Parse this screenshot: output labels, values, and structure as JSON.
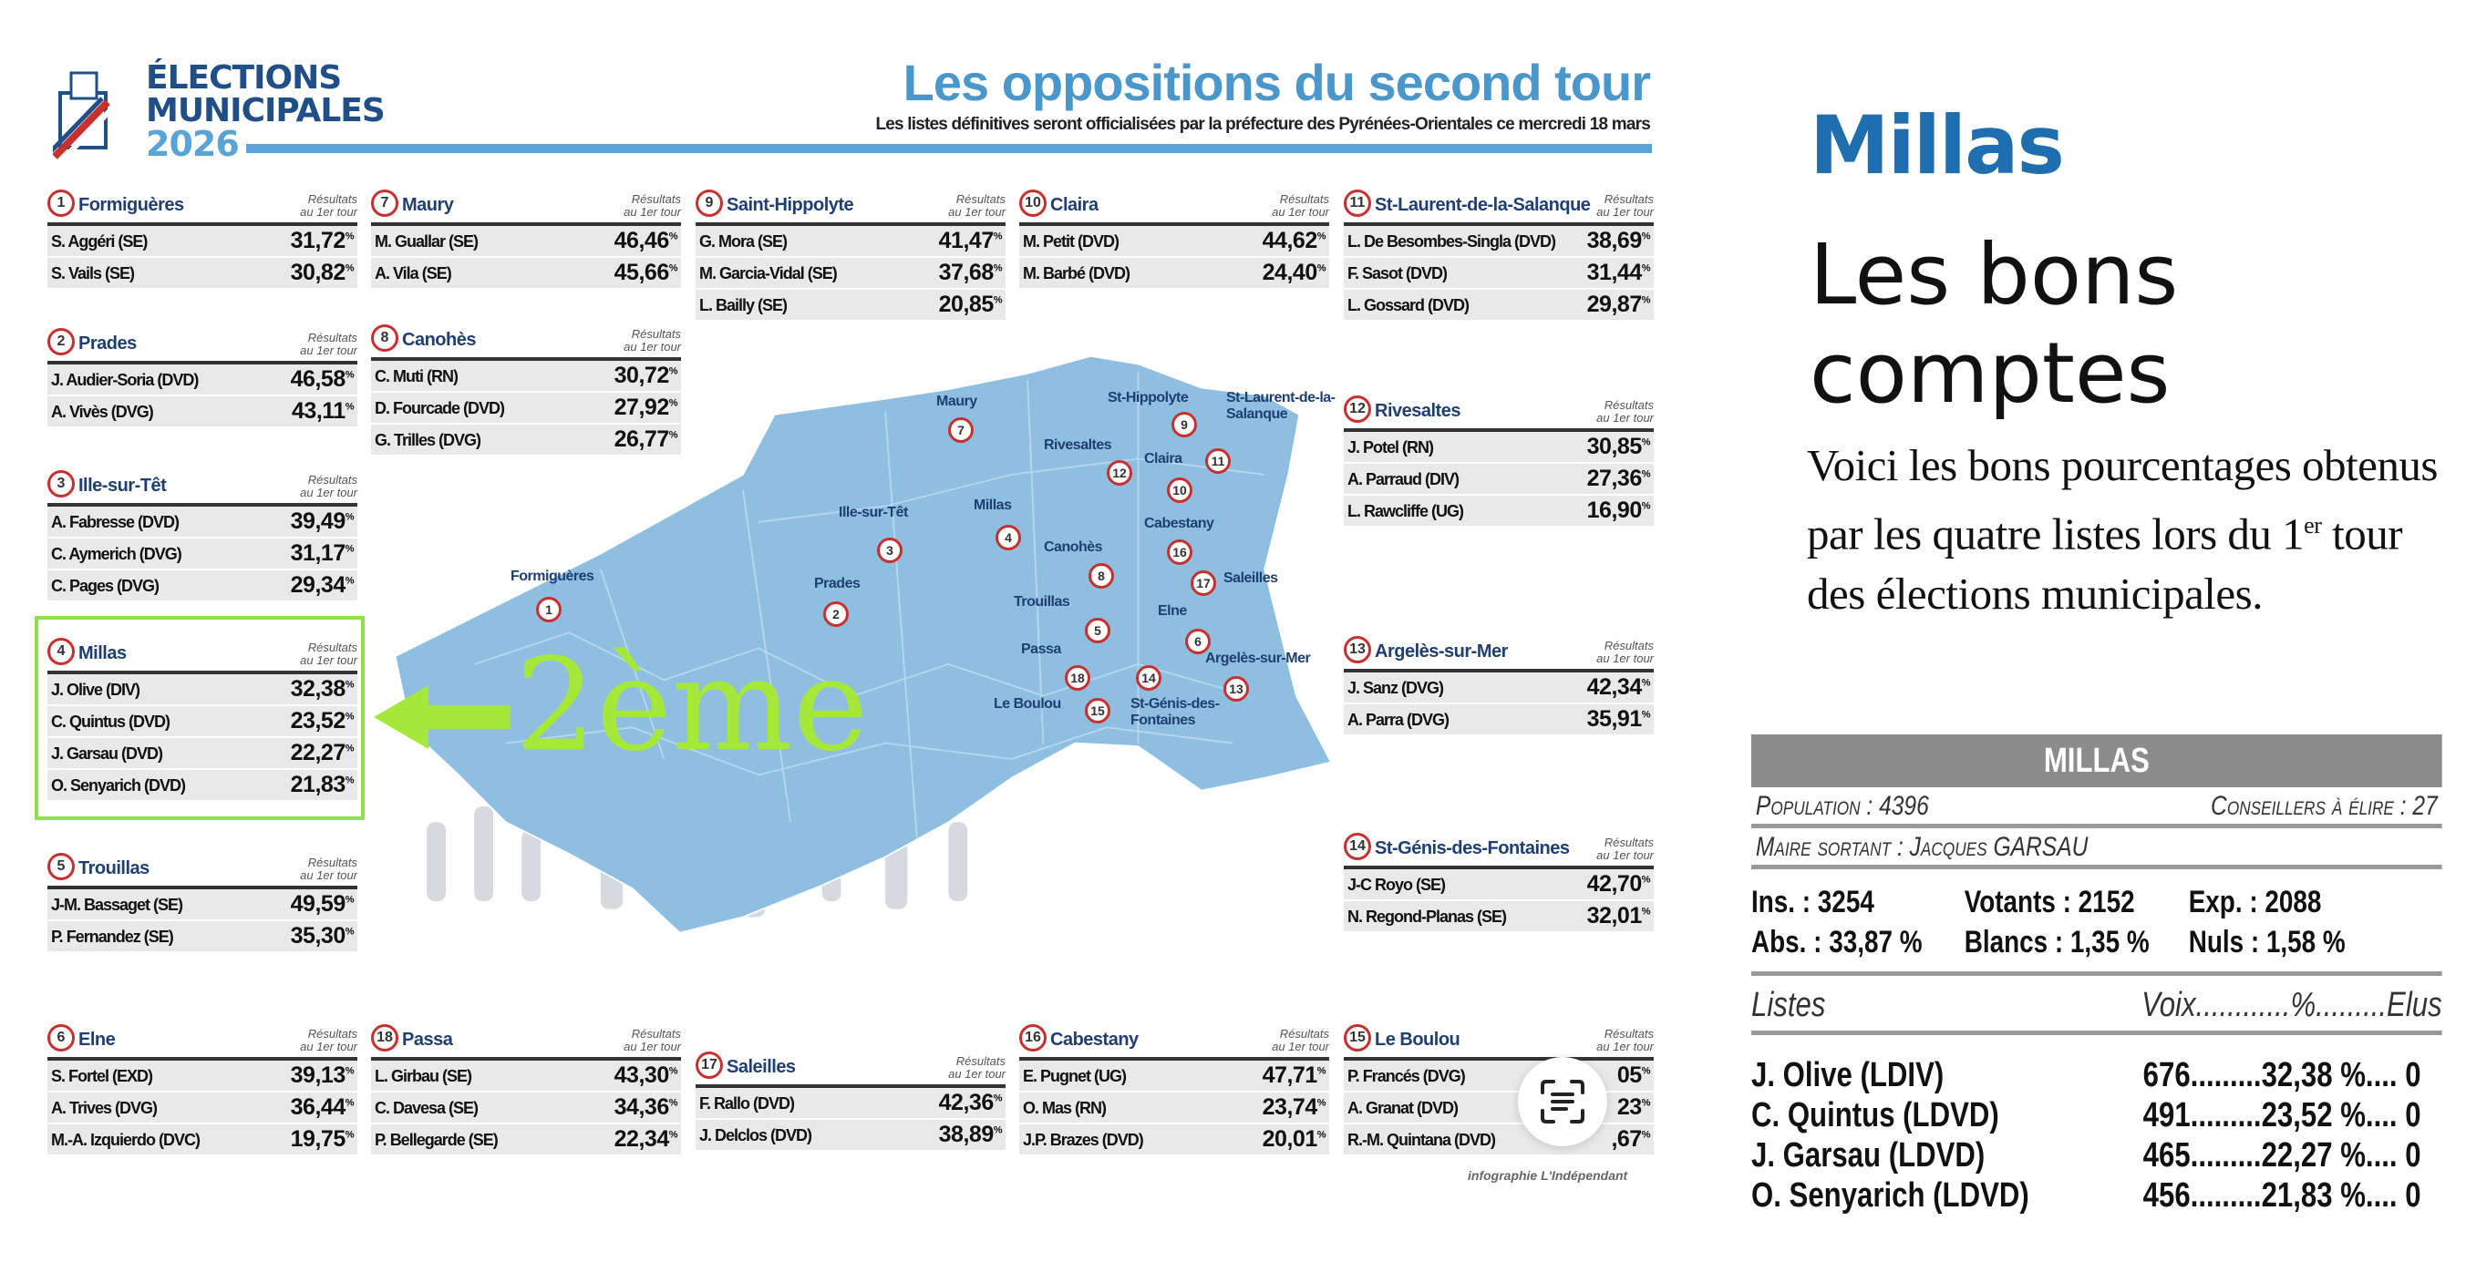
{
  "logo": {
    "line1": "ÉLECTIONS",
    "line2": "MUNICIPALES",
    "year": "2026"
  },
  "header": {
    "title": "Les oppositions du second tour",
    "subtitle": "Les listes définitives seront officialisées par la préfecture des Pyrénées-Orientales ce mercredi 18 mars"
  },
  "results_label": "Résultats au 1er tour",
  "communes": [
    {
      "num": "1",
      "town": "Formiguères",
      "rows": [
        [
          "S. Aggéri (SE)",
          "31,72"
        ],
        [
          "S. Vails (SE)",
          "30,82"
        ]
      ]
    },
    {
      "num": "7",
      "town": "Maury",
      "rows": [
        [
          "M. Guallar (SE)",
          "46,46"
        ],
        [
          "A. Vila (SE)",
          "45,66"
        ]
      ]
    },
    {
      "num": "9",
      "town": "Saint-Hippolyte",
      "rows": [
        [
          "G. Mora (SE)",
          "41,47"
        ],
        [
          "M. Garcia-Vidal (SE)",
          "37,68"
        ],
        [
          "L. Bailly (SE)",
          "20,85"
        ]
      ]
    },
    {
      "num": "10",
      "town": "Claira",
      "rows": [
        [
          "M. Petit (DVD)",
          "44,62"
        ],
        [
          "M. Barbé (DVD)",
          "24,40"
        ]
      ]
    },
    {
      "num": "11",
      "town": "St-Laurent-de-la-Salanque",
      "rows": [
        [
          "L. De Besombes-Singla (DVD)",
          "38,69"
        ],
        [
          "F. Sasot (DVD)",
          "31,44"
        ],
        [
          "L. Gossard (DVD)",
          "29,87"
        ]
      ]
    },
    {
      "num": "2",
      "town": "Prades",
      "rows": [
        [
          "J. Audier-Soria (DVD)",
          "46,58"
        ],
        [
          "A. Vivès (DVG)",
          "43,11"
        ]
      ]
    },
    {
      "num": "8",
      "town": "Canohès",
      "rows": [
        [
          "C. Muti (RN)",
          "30,72"
        ],
        [
          "D. Fourcade (DVD)",
          "27,92"
        ],
        [
          "G. Trilles (DVG)",
          "26,77"
        ]
      ]
    },
    {
      "num": "3",
      "town": "Ille-sur-Têt",
      "rows": [
        [
          "A. Fabresse (DVD)",
          "39,49"
        ],
        [
          "C. Aymerich (DVG)",
          "31,17"
        ],
        [
          "C. Pages (DVG)",
          "29,34"
        ]
      ]
    },
    {
      "num": "12",
      "town": "Rivesaltes",
      "rows": [
        [
          "J. Potel (RN)",
          "30,85"
        ],
        [
          "A. Parraud (DIV)",
          "27,36"
        ],
        [
          "L. Rawcliffe (UG)",
          "16,90"
        ]
      ]
    },
    {
      "num": "4",
      "town": "Millas",
      "rows": [
        [
          "J. Olive (DIV)",
          "32,38"
        ],
        [
          "C. Quintus (DVD)",
          "23,52"
        ],
        [
          "J. Garsau (DVD)",
          "22,27"
        ],
        [
          "O. Senyarich (DVD)",
          "21,83"
        ]
      ]
    },
    {
      "num": "13",
      "town": "Argelès-sur-Mer",
      "rows": [
        [
          "J. Sanz (DVG)",
          "42,34"
        ],
        [
          "A. Parra (DVG)",
          "35,91"
        ]
      ]
    },
    {
      "num": "5",
      "town": "Trouillas",
      "rows": [
        [
          "J-M. Bassaget (SE)",
          "49,59"
        ],
        [
          "P. Fernandez (SE)",
          "35,30"
        ]
      ]
    },
    {
      "num": "14",
      "town": "St-Génis-des-Fontaines",
      "rows": [
        [
          "J-C Royo (SE)",
          "42,70"
        ],
        [
          "N. Regond-Planas (SE)",
          "32,01"
        ]
      ]
    },
    {
      "num": "6",
      "town": "Elne",
      "rows": [
        [
          "S. Fortel (EXD)",
          "39,13"
        ],
        [
          "A. Trives (DVG)",
          "36,44"
        ],
        [
          "M.-A. Izquierdo (DVC)",
          "19,75"
        ]
      ]
    },
    {
      "num": "18",
      "town": "Passa",
      "rows": [
        [
          "L. Girbau (SE)",
          "43,30"
        ],
        [
          "C. Davesa (SE)",
          "34,36"
        ],
        [
          "P. Bellegarde (SE)",
          "22,34"
        ]
      ]
    },
    {
      "num": "17",
      "town": "Saleilles",
      "rows": [
        [
          "F. Rallo (DVD)",
          "42,36"
        ],
        [
          "J. Delclos (DVD)",
          "38,89"
        ]
      ]
    },
    {
      "num": "16",
      "town": "Cabestany",
      "rows": [
        [
          "E. Pugnet (UG)",
          "47,71"
        ],
        [
          "O. Mas (RN)",
          "23,74"
        ],
        [
          "J.P. Brazes (DVD)",
          "20,01"
        ]
      ]
    },
    {
      "num": "15",
      "town": "Le Boulou",
      "rows": [
        [
          "P. Francés (DVG)",
          "05"
        ],
        [
          "A. Granat (DVD)",
          "23"
        ],
        [
          "R.-M. Quintana (DVD)",
          ",67"
        ]
      ]
    }
  ],
  "map_labels": [
    {
      "num": "7",
      "town": "Maury"
    },
    {
      "num": "9",
      "town": "St-Hippolyte"
    },
    {
      "num": "11",
      "town": "St-Laurent-de-la-Salanque"
    },
    {
      "num": "12",
      "town": "Rivesaltes"
    },
    {
      "num": "10",
      "town": "Claira"
    },
    {
      "num": "3",
      "town": "Ille-sur-Têt"
    },
    {
      "num": "4",
      "town": "Millas"
    },
    {
      "num": "16",
      "town": "Cabestany"
    },
    {
      "num": "8",
      "town": "Canohès"
    },
    {
      "num": "17",
      "town": "Saleilles"
    },
    {
      "num": "2",
      "town": "Prades"
    },
    {
      "num": "5",
      "town": "Trouillas"
    },
    {
      "num": "6",
      "town": "Elne"
    },
    {
      "num": "1",
      "town": "Formiguères"
    },
    {
      "num": "18",
      "town": "Passa"
    },
    {
      "num": "13",
      "town": "Argelès-sur-Mer"
    },
    {
      "num": "15",
      "town": "Le Boulou"
    },
    {
      "num": "14",
      "town": "St-Génis-des-Fontaines"
    }
  ],
  "annotation": {
    "text": "2ème",
    "color": "#a6e83a"
  },
  "credit": "infographie L'Indépendant",
  "colors": {
    "title_blue": "#4a97cc",
    "map_blue": "#8fbfe0",
    "circle_red": "#c8302f",
    "highlight_green": "#8ee04a"
  },
  "article": {
    "town": "Millas",
    "headline": "Les bons comptes",
    "lead": "Voici les bons pourcentages obtenus par les quatre listes lors du 1er tour des élections municipales."
  },
  "results_table": {
    "title": "MILLAS",
    "population": "Population : 4396",
    "conseillers": "Conseillers à élire : 27",
    "maire": "Maire sortant : Jacques GARSAU",
    "ins": "Ins. : 3254",
    "votants": "Votants : 2152",
    "exp": "Exp. : 2088",
    "abs": "Abs. : 33,87 %",
    "blancs": "Blancs : 1,35 %",
    "nuls": "Nuls : 1,58 %",
    "col_listes": "Listes",
    "col_right": "Voix............%.........Elus",
    "rows": [
      {
        "name": "J. Olive (LDIV)",
        "result": "676.........32,38 %.... 0"
      },
      {
        "name": "C. Quintus (LDVD)",
        "result": "491.........23,52 %.... 0"
      },
      {
        "name": "J. Garsau (LDVD)",
        "result": "465.........22,27 %.... 0"
      },
      {
        "name": "O. Senyarich (LDVD)",
        "result": "456.........21,83 %.... 0"
      }
    ]
  }
}
